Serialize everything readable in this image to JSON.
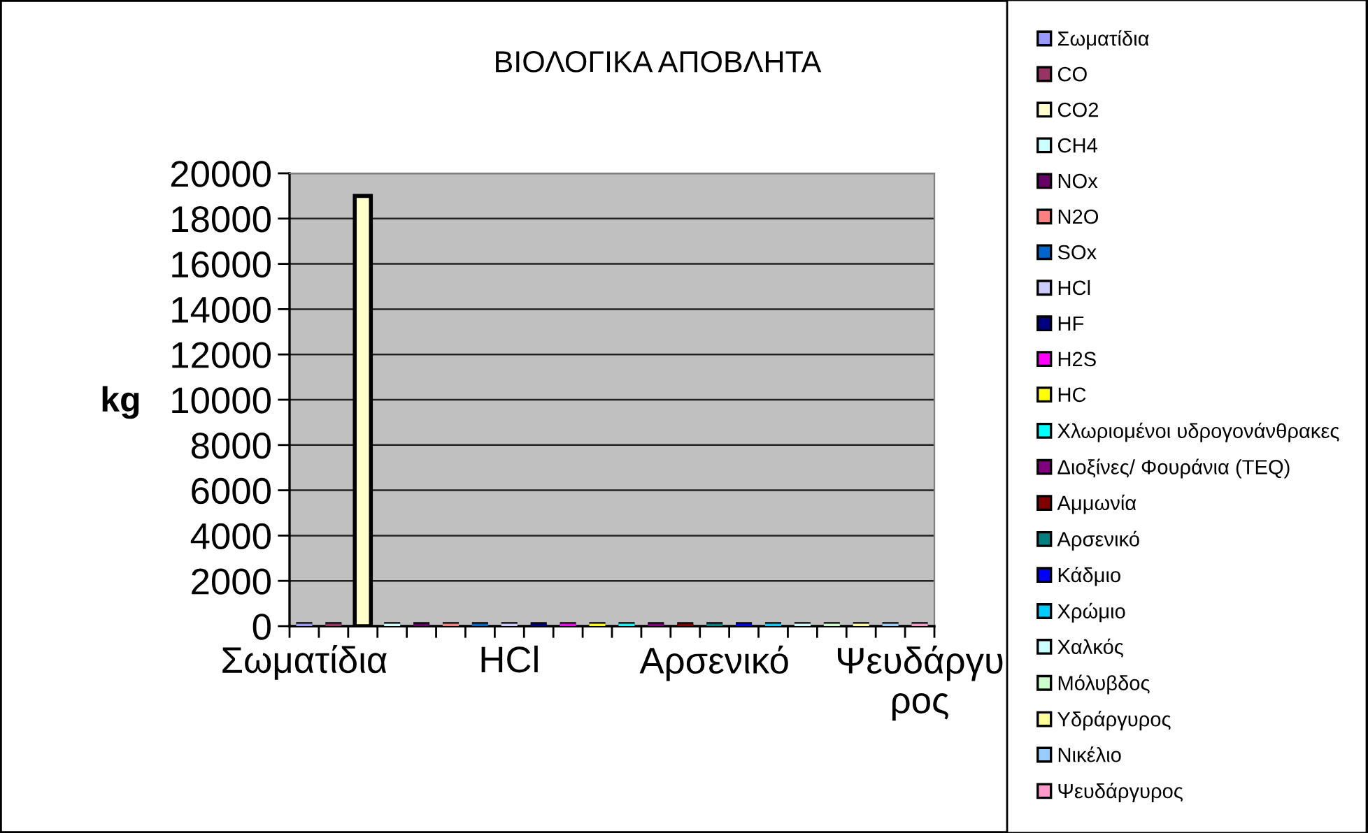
{
  "chart_data": {
    "type": "bar",
    "title": "ΒΙΟΛΟΓΙΚΑ ΑΠΟΒΛΗΤΑ",
    "ylabel": "kg",
    "categories": [
      "Σωματίδια",
      null,
      null,
      null,
      null,
      null,
      null,
      "HCl",
      null,
      null,
      null,
      null,
      null,
      null,
      "Αρσενικό",
      null,
      null,
      null,
      null,
      null,
      null,
      "Ψευδάργυ\nρος"
    ],
    "stacked": true,
    "ylim": [
      0,
      20000
    ],
    "yticks": [
      0,
      2000,
      4000,
      6000,
      8000,
      10000,
      12000,
      14000,
      16000,
      18000,
      20000
    ],
    "grid": "y",
    "legend": "right",
    "series": [
      {
        "name": "Σωματίδια",
        "color": "#9999ff",
        "values": [
          0,
          null,
          null,
          null,
          null,
          null,
          null,
          null,
          null,
          null,
          null,
          null,
          null,
          null,
          null,
          null,
          null,
          null,
          null,
          null,
          null,
          null
        ]
      },
      {
        "name": "CO",
        "color": "#993366",
        "values": [
          null,
          0,
          null,
          null,
          null,
          null,
          null,
          null,
          null,
          null,
          null,
          null,
          null,
          null,
          null,
          null,
          null,
          null,
          null,
          null,
          null,
          null
        ]
      },
      {
        "name": "CO2",
        "color": "#ffffcc",
        "values": [
          null,
          null,
          19000,
          null,
          null,
          null,
          null,
          null,
          null,
          null,
          null,
          null,
          null,
          null,
          null,
          null,
          null,
          null,
          null,
          null,
          null,
          null
        ]
      },
      {
        "name": "CH4",
        "color": "#ccffff",
        "values": [
          null,
          null,
          null,
          0,
          null,
          null,
          null,
          null,
          null,
          null,
          null,
          null,
          null,
          null,
          null,
          null,
          null,
          null,
          null,
          null,
          null,
          null
        ]
      },
      {
        "name": "NOx",
        "color": "#660066",
        "values": [
          null,
          null,
          null,
          null,
          0,
          null,
          null,
          null,
          null,
          null,
          null,
          null,
          null,
          null,
          null,
          null,
          null,
          null,
          null,
          null,
          null,
          null
        ]
      },
      {
        "name": "N2O",
        "color": "#ff8080",
        "values": [
          null,
          null,
          null,
          null,
          null,
          0,
          null,
          null,
          null,
          null,
          null,
          null,
          null,
          null,
          null,
          null,
          null,
          null,
          null,
          null,
          null,
          null
        ]
      },
      {
        "name": "SOx",
        "color": "#0066cc",
        "values": [
          null,
          null,
          null,
          null,
          null,
          null,
          0,
          null,
          null,
          null,
          null,
          null,
          null,
          null,
          null,
          null,
          null,
          null,
          null,
          null,
          null,
          null
        ]
      },
      {
        "name": "HCl",
        "color": "#ccccff",
        "values": [
          null,
          null,
          null,
          null,
          null,
          null,
          null,
          0,
          null,
          null,
          null,
          null,
          null,
          null,
          null,
          null,
          null,
          null,
          null,
          null,
          null,
          null
        ]
      },
      {
        "name": "HF",
        "color": "#000080",
        "values": [
          null,
          null,
          null,
          null,
          null,
          null,
          null,
          null,
          0,
          null,
          null,
          null,
          null,
          null,
          null,
          null,
          null,
          null,
          null,
          null,
          null,
          null
        ]
      },
      {
        "name": "H2S",
        "color": "#ff00ff",
        "values": [
          null,
          null,
          null,
          null,
          null,
          null,
          null,
          null,
          null,
          0,
          null,
          null,
          null,
          null,
          null,
          null,
          null,
          null,
          null,
          null,
          null,
          null
        ]
      },
      {
        "name": "HC",
        "color": "#ffff00",
        "values": [
          null,
          null,
          null,
          null,
          null,
          null,
          null,
          null,
          null,
          null,
          0,
          null,
          null,
          null,
          null,
          null,
          null,
          null,
          null,
          null,
          null,
          null
        ]
      },
      {
        "name": "Χλωριομένοι υδρογονάνθρακες",
        "color": "#00ffff",
        "values": [
          null,
          null,
          null,
          null,
          null,
          null,
          null,
          null,
          null,
          null,
          null,
          0,
          null,
          null,
          null,
          null,
          null,
          null,
          null,
          null,
          null,
          null
        ]
      },
      {
        "name": "Διοξίνες/ Φουράνια (TEQ)",
        "color": "#800080",
        "values": [
          null,
          null,
          null,
          null,
          null,
          null,
          null,
          null,
          null,
          null,
          null,
          null,
          0,
          null,
          null,
          null,
          null,
          null,
          null,
          null,
          null,
          null
        ]
      },
      {
        "name": "Αμμωνία",
        "color": "#800000",
        "values": [
          null,
          null,
          null,
          null,
          null,
          null,
          null,
          null,
          null,
          null,
          null,
          null,
          null,
          0,
          null,
          null,
          null,
          null,
          null,
          null,
          null,
          null
        ]
      },
      {
        "name": "Αρσενικό",
        "color": "#008080",
        "values": [
          null,
          null,
          null,
          null,
          null,
          null,
          null,
          null,
          null,
          null,
          null,
          null,
          null,
          null,
          0,
          null,
          null,
          null,
          null,
          null,
          null,
          null
        ]
      },
      {
        "name": "Κάδμιο",
        "color": "#0000ff",
        "values": [
          null,
          null,
          null,
          null,
          null,
          null,
          null,
          null,
          null,
          null,
          null,
          null,
          null,
          null,
          null,
          0,
          null,
          null,
          null,
          null,
          null,
          null
        ]
      },
      {
        "name": "Χρώμιο",
        "color": "#00ccff",
        "values": [
          null,
          null,
          null,
          null,
          null,
          null,
          null,
          null,
          null,
          null,
          null,
          null,
          null,
          null,
          null,
          null,
          0,
          null,
          null,
          null,
          null,
          null
        ]
      },
      {
        "name": "Χαλκός",
        "color": "#ccffff",
        "values": [
          null,
          null,
          null,
          null,
          null,
          null,
          null,
          null,
          null,
          null,
          null,
          null,
          null,
          null,
          null,
          null,
          null,
          0,
          null,
          null,
          null,
          null
        ]
      },
      {
        "name": "Μόλυβδος",
        "color": "#ccffcc",
        "values": [
          null,
          null,
          null,
          null,
          null,
          null,
          null,
          null,
          null,
          null,
          null,
          null,
          null,
          null,
          null,
          null,
          null,
          null,
          0,
          null,
          null,
          null
        ]
      },
      {
        "name": "Υδράργυρος",
        "color": "#ffff99",
        "values": [
          null,
          null,
          null,
          null,
          null,
          null,
          null,
          null,
          null,
          null,
          null,
          null,
          null,
          null,
          null,
          null,
          null,
          null,
          null,
          0,
          null,
          null
        ]
      },
      {
        "name": "Νικέλιο",
        "color": "#99ccff",
        "values": [
          null,
          null,
          null,
          null,
          null,
          null,
          null,
          null,
          null,
          null,
          null,
          null,
          null,
          null,
          null,
          null,
          null,
          null,
          null,
          null,
          0,
          null
        ]
      },
      {
        "name": "Ψευδάργυρος",
        "color": "#ff99cc",
        "values": [
          null,
          null,
          null,
          null,
          null,
          null,
          null,
          null,
          null,
          null,
          null,
          null,
          null,
          null,
          null,
          null,
          null,
          null,
          null,
          null,
          null,
          0
        ]
      }
    ]
  }
}
